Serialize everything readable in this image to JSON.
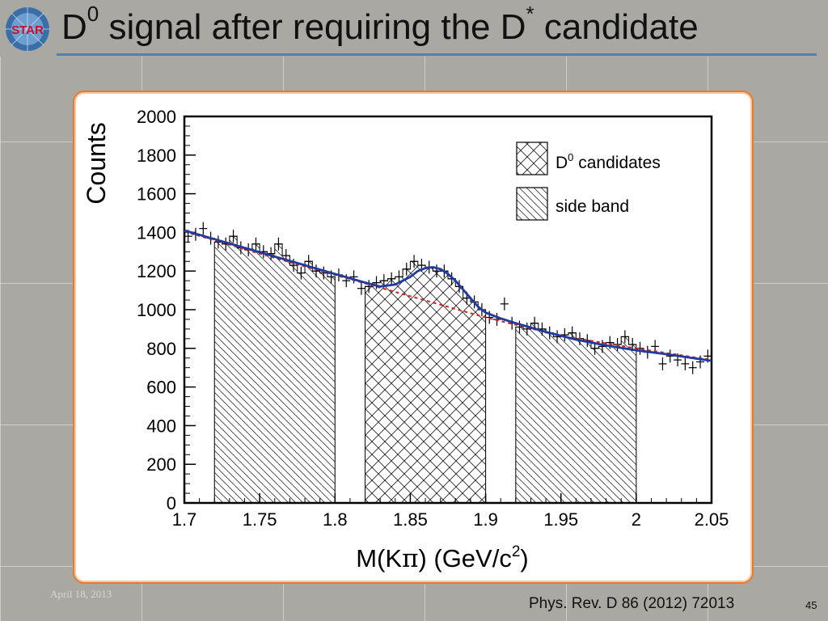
{
  "slide": {
    "logo_text": "STAR",
    "title_main": "D",
    "title_sup1": "0",
    "title_mid": " signal after requiring the D",
    "title_sup2": "*",
    "title_end": " candidate",
    "date": "April 18, 2013",
    "citation": "Phys. Rev. D 86 (2012) 72013",
    "page_number": "45"
  },
  "colors": {
    "background": "#a9a8a3",
    "title_rule": "#4f7fb3",
    "panel_border": "#e87a2c",
    "fit_line": "#1f3aa0",
    "background_line": "#d42020"
  },
  "chart_data": {
    "type": "scatter",
    "xlabel_main": "M(K",
    "xlabel_pi": "π",
    "xlabel_unit": ") (GeV/c",
    "xlabel_sup": "2",
    "xlabel_close": ")",
    "ylabel": "Counts",
    "xlim": [
      1.7,
      2.05
    ],
    "ylim": [
      0,
      2000
    ],
    "x_ticks": [
      "1.7",
      "1.75",
      "1.8",
      "1.85",
      "1.9",
      "1.95",
      "2",
      "2.05"
    ],
    "x_tick_values": [
      1.7,
      1.75,
      1.8,
      1.85,
      1.9,
      1.95,
      2.0,
      2.05
    ],
    "y_ticks": [
      "0",
      "200",
      "400",
      "600",
      "800",
      "1000",
      "1200",
      "1400",
      "1600",
      "1800",
      "2000"
    ],
    "y_tick_values": [
      0,
      200,
      400,
      600,
      800,
      1000,
      1200,
      1400,
      1600,
      1800,
      2000
    ],
    "legend": [
      {
        "name": "D",
        "sup": "0",
        "rest": " candidates",
        "pattern": "crosshatch"
      },
      {
        "name": "side band",
        "sup": "",
        "rest": "",
        "pattern": "hatch"
      }
    ],
    "legend_position": "top-right",
    "regions": [
      {
        "label": "side band",
        "x0": 1.72,
        "x1": 1.8,
        "pattern": "hatch"
      },
      {
        "label": "D0 candidates",
        "x0": 1.82,
        "x1": 1.9,
        "pattern": "crosshatch"
      },
      {
        "label": "side band",
        "x0": 1.92,
        "x1": 2.0,
        "pattern": "hatch"
      }
    ],
    "series": [
      {
        "name": "data",
        "style": "crosses",
        "x": [
          1.7025,
          1.7075,
          1.7125,
          1.7175,
          1.7225,
          1.7275,
          1.7325,
          1.7375,
          1.7425,
          1.7475,
          1.7525,
          1.7575,
          1.7625,
          1.7675,
          1.7725,
          1.7775,
          1.7825,
          1.7875,
          1.7925,
          1.7975,
          1.8025,
          1.8075,
          1.8125,
          1.8175,
          1.8225,
          1.8275,
          1.8325,
          1.8375,
          1.8425,
          1.8475,
          1.8525,
          1.8575,
          1.8625,
          1.8675,
          1.8725,
          1.8775,
          1.8825,
          1.8875,
          1.8925,
          1.8975,
          1.9025,
          1.9075,
          1.9125,
          1.9175,
          1.9225,
          1.9275,
          1.9325,
          1.9375,
          1.9425,
          1.9475,
          1.9525,
          1.9575,
          1.9625,
          1.9675,
          1.9725,
          1.9775,
          1.9825,
          1.9875,
          1.9925,
          1.9975,
          2.0025,
          2.0075,
          2.0125,
          2.0175,
          2.0225,
          2.0275,
          2.0325,
          2.0375,
          2.0425,
          2.0475
        ],
        "y": [
          1380,
          1390,
          1420,
          1370,
          1350,
          1340,
          1380,
          1320,
          1310,
          1340,
          1300,
          1290,
          1340,
          1280,
          1230,
          1190,
          1250,
          1200,
          1190,
          1170,
          1180,
          1150,
          1170,
          1110,
          1120,
          1140,
          1150,
          1160,
          1170,
          1210,
          1250,
          1230,
          1220,
          1200,
          1200,
          1160,
          1120,
          1060,
          1040,
          1000,
          960,
          950,
          1030,
          930,
          910,
          900,
          930,
          900,
          880,
          860,
          870,
          880,
          850,
          840,
          800,
          810,
          830,
          820,
          860,
          820,
          800,
          780,
          810,
          720,
          760,
          740,
          720,
          700,
          730,
          760
        ]
      },
      {
        "name": "fit",
        "style": "line",
        "x": [
          1.7,
          1.72,
          1.74,
          1.76,
          1.78,
          1.8,
          1.82,
          1.83,
          1.84,
          1.85,
          1.855,
          1.86,
          1.865,
          1.87,
          1.875,
          1.88,
          1.885,
          1.89,
          1.895,
          1.9,
          1.91,
          1.92,
          1.94,
          1.96,
          1.98,
          2.0,
          2.02,
          2.05
        ],
        "y": [
          1410,
          1365,
          1320,
          1275,
          1230,
          1185,
          1140,
          1120,
          1130,
          1170,
          1200,
          1215,
          1220,
          1210,
          1185,
          1150,
          1105,
          1060,
          1015,
          985,
          955,
          930,
          885,
          845,
          815,
          790,
          770,
          735
        ]
      },
      {
        "name": "background",
        "style": "dashed",
        "x": [
          1.7,
          1.75,
          1.8,
          1.85,
          1.9,
          1.95,
          2.0,
          2.05
        ],
        "y": [
          1405,
          1290,
          1180,
          1070,
          960,
          865,
          800,
          740
        ]
      }
    ]
  }
}
